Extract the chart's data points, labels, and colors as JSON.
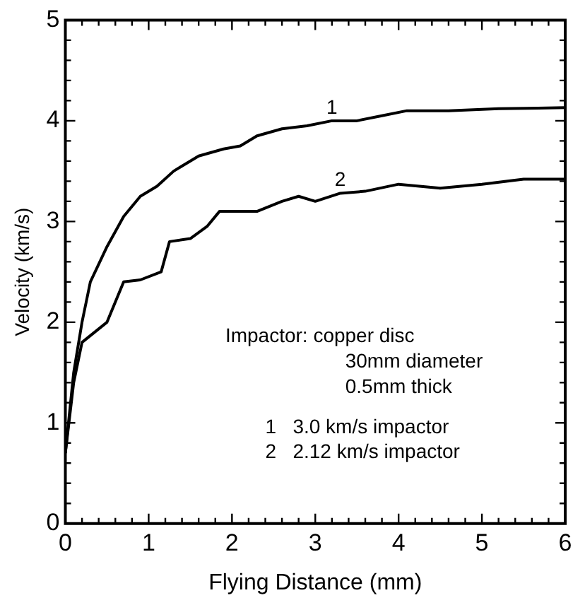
{
  "chart_data": {
    "type": "line",
    "xlabel": "Flying Distance (mm)",
    "ylabel": "Velocity (km/s)",
    "xlim": [
      0,
      6
    ],
    "xticks": [
      0,
      1,
      2,
      3,
      4,
      5,
      6
    ],
    "ylim": [
      0,
      5
    ],
    "yticks": [
      0,
      1,
      2,
      3,
      4,
      5
    ],
    "grid": false,
    "legend": false,
    "marker": "none",
    "line_style": "solid",
    "series": [
      {
        "color": "#000000",
        "x": [
          0,
          0.1,
          0.2,
          0.3,
          0.5,
          0.7,
          0.9,
          1.1,
          1.3,
          1.6,
          1.9,
          2.1,
          2.3,
          2.6,
          2.9,
          3.2,
          3.5,
          3.8,
          4.1,
          4.6,
          5.2,
          6.0
        ],
        "values": [
          0.7,
          1.5,
          2.0,
          2.4,
          2.75,
          3.05,
          3.25,
          3.35,
          3.5,
          3.65,
          3.72,
          3.75,
          3.85,
          3.92,
          3.95,
          4.0,
          4.0,
          4.05,
          4.1,
          4.1,
          4.12,
          4.13
        ]
      },
      {
        "color": "#000000",
        "x": [
          0,
          0.1,
          0.2,
          0.35,
          0.5,
          0.7,
          0.9,
          1.15,
          1.25,
          1.5,
          1.7,
          1.85,
          2.3,
          2.6,
          2.8,
          3.0,
          3.3,
          3.6,
          4.0,
          4.5,
          5.0,
          5.5,
          6.0
        ],
        "values": [
          0.7,
          1.4,
          1.8,
          1.9,
          2.0,
          2.4,
          2.42,
          2.5,
          2.8,
          2.83,
          2.95,
          3.1,
          3.1,
          3.2,
          3.25,
          3.2,
          3.28,
          3.3,
          3.37,
          3.33,
          3.37,
          3.42,
          3.42
        ]
      }
    ],
    "annotations": [
      {
        "text": "1",
        "x": 3.2,
        "y": 4.0
      },
      {
        "text": "2",
        "x": 3.3,
        "y": 3.28
      },
      "Impactor: copper disc",
      "30mm diameter",
      "0.5mm thick",
      "1   3.0 km/s impactor",
      "2   2.12 km/s impactor"
    ]
  }
}
